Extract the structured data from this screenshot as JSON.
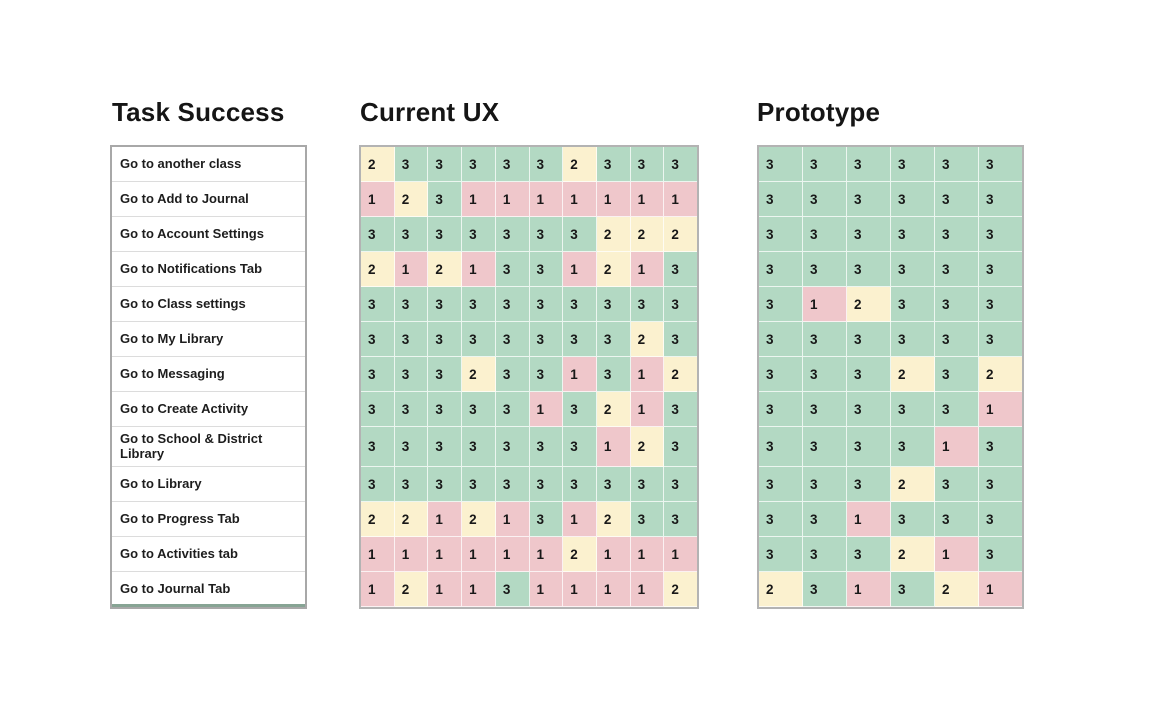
{
  "titles": {
    "tasks": "Task Success",
    "current_ux": "Current UX",
    "prototype": "Prototype"
  },
  "tasks": [
    "Go to another class",
    "Go to Add to Journal",
    "Go to Account Settings",
    "Go to Notifications Tab",
    "Go to Class settings",
    "Go to My Library",
    "Go to Messaging",
    "Go to Create Activity",
    "Go to School & District Library",
    "Go to Library",
    "Go to Progress Tab",
    "Go to Activities tab",
    "Go to Journal Tab"
  ],
  "score_colors": {
    "1": "#efc7cb",
    "2": "#fbf1cf",
    "3": "#b3d9c3"
  },
  "chart_data": [
    {
      "type": "heatmap",
      "title": "Current UX",
      "row_labels": [
        "Go to another class",
        "Go to Add to Journal",
        "Go to Account Settings",
        "Go to Notifications Tab",
        "Go to Class settings",
        "Go to My Library",
        "Go to Messaging",
        "Go to Create Activity",
        "Go to School & District Library",
        "Go to Library",
        "Go to Progress Tab",
        "Go to Activities tab",
        "Go to Journal Tab"
      ],
      "num_columns": 10,
      "value_scale": {
        "min": 1,
        "max": 3,
        "meaning": "task success score: 1=fail(red), 2=partial(yellow), 3=success(green)"
      },
      "values": [
        [
          2,
          3,
          3,
          3,
          3,
          3,
          2,
          3,
          3,
          3
        ],
        [
          1,
          2,
          3,
          1,
          1,
          1,
          1,
          1,
          1,
          1
        ],
        [
          3,
          3,
          3,
          3,
          3,
          3,
          3,
          2,
          2,
          2
        ],
        [
          2,
          1,
          2,
          1,
          3,
          3,
          1,
          2,
          1,
          3
        ],
        [
          3,
          3,
          3,
          3,
          3,
          3,
          3,
          3,
          3,
          3
        ],
        [
          3,
          3,
          3,
          3,
          3,
          3,
          3,
          3,
          2,
          3
        ],
        [
          3,
          3,
          3,
          2,
          3,
          3,
          1,
          3,
          1,
          2
        ],
        [
          3,
          3,
          3,
          3,
          3,
          1,
          3,
          2,
          1,
          3
        ],
        [
          3,
          3,
          3,
          3,
          3,
          3,
          3,
          1,
          2,
          3
        ],
        [
          3,
          3,
          3,
          3,
          3,
          3,
          3,
          3,
          3,
          3
        ],
        [
          2,
          2,
          1,
          2,
          1,
          3,
          1,
          2,
          3,
          3
        ],
        [
          1,
          1,
          1,
          1,
          1,
          1,
          2,
          1,
          1,
          1
        ],
        [
          1,
          2,
          1,
          1,
          3,
          1,
          1,
          1,
          1,
          2
        ]
      ]
    },
    {
      "type": "heatmap",
      "title": "Prototype",
      "row_labels": [
        "Go to another class",
        "Go to Add to Journal",
        "Go to Account Settings",
        "Go to Notifications Tab",
        "Go to Class settings",
        "Go to My Library",
        "Go to Messaging",
        "Go to Create Activity",
        "Go to School & District Library",
        "Go to Library",
        "Go to Progress Tab",
        "Go to Activities tab",
        "Go to Journal Tab"
      ],
      "num_columns": 6,
      "value_scale": {
        "min": 1,
        "max": 3,
        "meaning": "task success score: 1=fail(red), 2=partial(yellow), 3=success(green)"
      },
      "values": [
        [
          3,
          3,
          3,
          3,
          3,
          3
        ],
        [
          3,
          3,
          3,
          3,
          3,
          3
        ],
        [
          3,
          3,
          3,
          3,
          3,
          3
        ],
        [
          3,
          3,
          3,
          3,
          3,
          3
        ],
        [
          3,
          1,
          2,
          3,
          3,
          3
        ],
        [
          3,
          3,
          3,
          3,
          3,
          3
        ],
        [
          3,
          3,
          3,
          2,
          3,
          2
        ],
        [
          3,
          3,
          3,
          3,
          3,
          1
        ],
        [
          3,
          3,
          3,
          3,
          1,
          3
        ],
        [
          3,
          3,
          3,
          2,
          3,
          3
        ],
        [
          3,
          3,
          1,
          3,
          3,
          3
        ],
        [
          3,
          3,
          3,
          2,
          1,
          3
        ],
        [
          2,
          3,
          1,
          3,
          2,
          1
        ]
      ]
    }
  ]
}
